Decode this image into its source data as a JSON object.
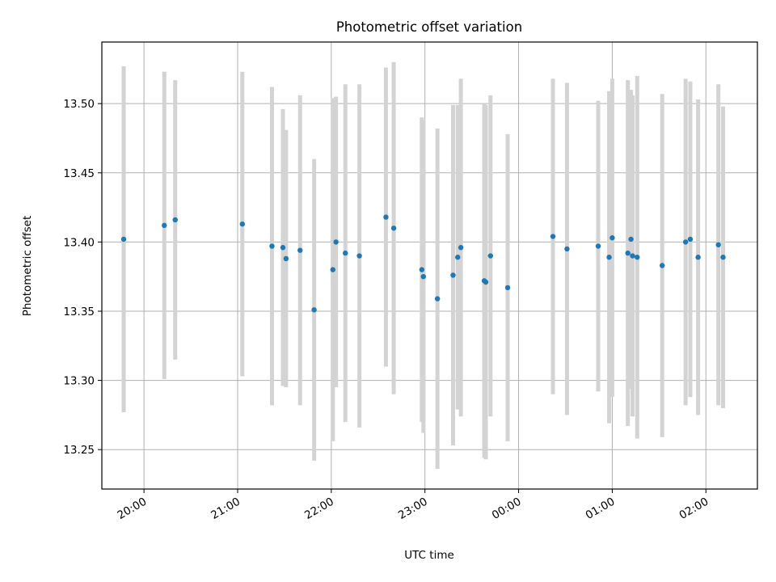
{
  "chart_data": {
    "type": "scatter",
    "title": "Photometric offset variation",
    "xlabel": "UTC time",
    "ylabel": "Photometric offset",
    "x_unit": "UTC time (HH:MM); times after 23:59 are on the following day",
    "xlim": [
      "19:33",
      "02:33"
    ],
    "ylim": [
      13.2215,
      13.5445
    ],
    "x_ticks": [
      "20:00",
      "21:00",
      "22:00",
      "23:00",
      "00:00",
      "01:00",
      "02:00"
    ],
    "y_ticks": [
      "13.25",
      "13.30",
      "13.35",
      "13.40",
      "13.45",
      "13.50"
    ],
    "grid": true,
    "point_color": "#1f77b4",
    "errorbar_color": "#d3d3d3",
    "series": [
      {
        "points": [
          {
            "t": "19:47",
            "y": 13.402,
            "err": 0.125
          },
          {
            "t": "20:13",
            "y": 13.412,
            "err": 0.111
          },
          {
            "t": "20:20",
            "y": 13.416,
            "err": 0.101
          },
          {
            "t": "21:03",
            "y": 13.413,
            "err": 0.11
          },
          {
            "t": "21:22",
            "y": 13.397,
            "err": 0.115
          },
          {
            "t": "21:29",
            "y": 13.396,
            "err": 0.1
          },
          {
            "t": "21:31",
            "y": 13.388,
            "err": 0.093
          },
          {
            "t": "21:40",
            "y": 13.394,
            "err": 0.112
          },
          {
            "t": "21:49",
            "y": 13.351,
            "err": 0.109
          },
          {
            "t": "22:01",
            "y": 13.38,
            "err": 0.124
          },
          {
            "t": "22:03",
            "y": 13.4,
            "err": 0.105
          },
          {
            "t": "22:09",
            "y": 13.392,
            "err": 0.122
          },
          {
            "t": "22:18",
            "y": 13.39,
            "err": 0.124
          },
          {
            "t": "22:35",
            "y": 13.418,
            "err": 0.108
          },
          {
            "t": "22:40",
            "y": 13.41,
            "err": 0.12
          },
          {
            "t": "22:58",
            "y": 13.38,
            "err": 0.11
          },
          {
            "t": "22:59",
            "y": 13.375,
            "err": 0.113
          },
          {
            "t": "23:08",
            "y": 13.359,
            "err": 0.123
          },
          {
            "t": "23:18",
            "y": 13.376,
            "err": 0.123
          },
          {
            "t": "23:21",
            "y": 13.389,
            "err": 0.11
          },
          {
            "t": "23:23",
            "y": 13.396,
            "err": 0.122
          },
          {
            "t": "23:38",
            "y": 13.372,
            "err": 0.128
          },
          {
            "t": "23:39",
            "y": 13.371,
            "err": 0.128
          },
          {
            "t": "23:42",
            "y": 13.39,
            "err": 0.116
          },
          {
            "t": "23:53",
            "y": 13.367,
            "err": 0.111
          },
          {
            "t": "00:22",
            "y": 13.404,
            "err": 0.114
          },
          {
            "t": "00:31",
            "y": 13.395,
            "err": 0.12
          },
          {
            "t": "00:51",
            "y": 13.397,
            "err": 0.105
          },
          {
            "t": "00:58",
            "y": 13.389,
            "err": 0.12
          },
          {
            "t": "01:00",
            "y": 13.403,
            "err": 0.115
          },
          {
            "t": "01:10",
            "y": 13.392,
            "err": 0.125
          },
          {
            "t": "01:12",
            "y": 13.402,
            "err": 0.108
          },
          {
            "t": "01:13",
            "y": 13.39,
            "err": 0.116
          },
          {
            "t": "01:16",
            "y": 13.389,
            "err": 0.131
          },
          {
            "t": "01:32",
            "y": 13.383,
            "err": 0.124
          },
          {
            "t": "01:47",
            "y": 13.4,
            "err": 0.118
          },
          {
            "t": "01:50",
            "y": 13.402,
            "err": 0.114
          },
          {
            "t": "01:55",
            "y": 13.389,
            "err": 0.114
          },
          {
            "t": "02:08",
            "y": 13.398,
            "err": 0.116
          },
          {
            "t": "02:11",
            "y": 13.389,
            "err": 0.109
          }
        ]
      }
    ]
  }
}
